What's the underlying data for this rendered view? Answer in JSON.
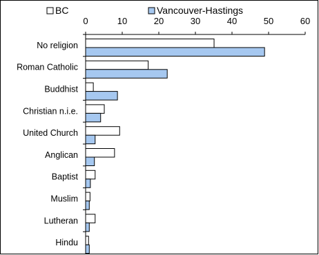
{
  "chart_data": {
    "type": "bar",
    "orientation": "horizontal",
    "categories": [
      "No religion",
      "Roman Catholic",
      "Buddhist",
      "Christian n.i.e.",
      "United Church",
      "Anglican",
      "Baptist",
      "Muslim",
      "Lutheran",
      "Hindu"
    ],
    "series": [
      {
        "name": "BC",
        "values": [
          35.1,
          17.1,
          2.1,
          5.1,
          9.3,
          7.9,
          2.6,
          1.2,
          2.6,
          0.8
        ],
        "color": "#ffffff"
      },
      {
        "name": "Vancouver-Hastings",
        "values": [
          48.9,
          22.3,
          8.7,
          4.1,
          2.6,
          2.4,
          1.3,
          1.0,
          1.0,
          1.0
        ],
        "color": "#a6c8f0"
      }
    ],
    "xlim": [
      0,
      60
    ],
    "xticks": [
      "0",
      "10",
      "20",
      "30",
      "40",
      "50",
      "60"
    ],
    "xlabel": "",
    "ylabel": "",
    "title": "",
    "legend_position": "top",
    "bar_stroke": "#000000"
  }
}
